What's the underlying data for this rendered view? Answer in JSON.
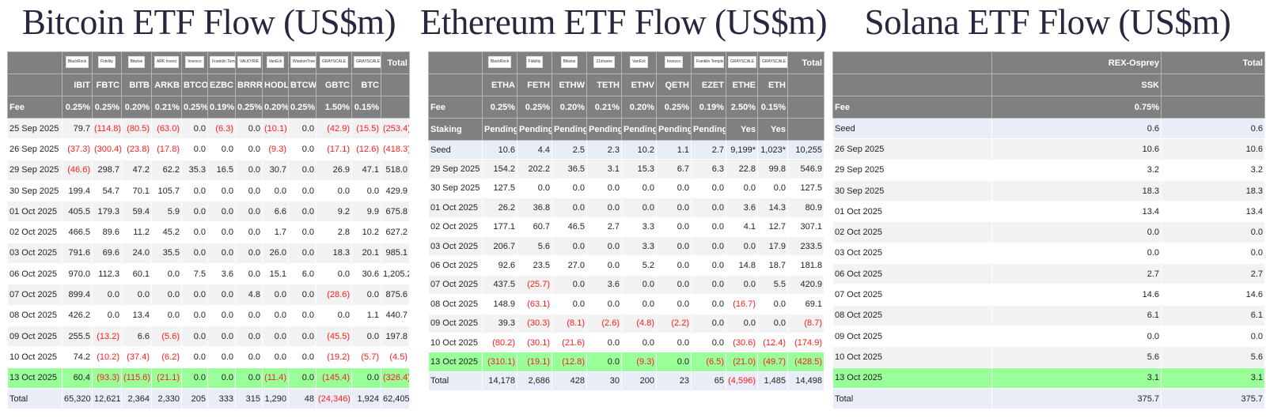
{
  "panels": [
    {
      "id": "btc",
      "title": "Bitcoin ETF Flow (US$m)",
      "widths": [
        69,
        38,
        37,
        38,
        38,
        33,
        35,
        34,
        33,
        35,
        45,
        37,
        36
      ],
      "logos": [
        "BlackRock",
        "Fidelity",
        "Bitwise",
        "ARK Invest",
        "Invesco",
        "Franklin Templeton",
        "VALKYRIE",
        "VanEck",
        "WisdomTree",
        "GRAYSCALE",
        "GRAYSCALE"
      ],
      "total_label": "Total",
      "tickers": [
        "IBIT",
        "FBTC",
        "BITB",
        "ARKB",
        "BTCO",
        "EZBC",
        "BRRR",
        "HODL",
        "BTCW",
        "GBTC",
        "BTC"
      ],
      "fee_label": "Fee",
      "fees": [
        "0.25%",
        "0.25%",
        "0.20%",
        "0.21%",
        "0.25%",
        "0.19%",
        "0.25%",
        "0.20%",
        "0.25%",
        "1.50%",
        "0.15%"
      ],
      "rows": [
        [
          "25 Sep 2025",
          "79.7",
          "(114.8)",
          "(80.5)",
          "(63.0)",
          "0.0",
          "(6.3)",
          "0.0",
          "(10.1)",
          "0.0",
          "(42.9)",
          "(15.5)",
          "(253.4)"
        ],
        [
          "26 Sep 2025",
          "(37.3)",
          "(300.4)",
          "(23.8)",
          "(17.8)",
          "0.0",
          "0.0",
          "0.0",
          "(9.3)",
          "0.0",
          "(17.1)",
          "(12.6)",
          "(418.3)"
        ],
        [
          "29 Sep 2025",
          "(46.6)",
          "298.7",
          "47.2",
          "62.2",
          "35.3",
          "16.5",
          "0.0",
          "30.7",
          "0.0",
          "26.9",
          "47.1",
          "518.0"
        ],
        [
          "30 Sep 2025",
          "199.4",
          "54.7",
          "70.1",
          "105.7",
          "0.0",
          "0.0",
          "0.0",
          "0.0",
          "0.0",
          "0.0",
          "0.0",
          "429.9"
        ],
        [
          "01 Oct 2025",
          "405.5",
          "179.3",
          "59.4",
          "5.9",
          "0.0",
          "0.0",
          "0.0",
          "6.6",
          "0.0",
          "9.2",
          "9.9",
          "675.8"
        ],
        [
          "02 Oct 2025",
          "466.5",
          "89.6",
          "11.2",
          "45.2",
          "0.0",
          "0.0",
          "0.0",
          "1.7",
          "0.0",
          "2.8",
          "10.2",
          "627.2"
        ],
        [
          "03 Oct 2025",
          "791.6",
          "69.6",
          "24.0",
          "35.5",
          "0.0",
          "0.0",
          "0.0",
          "26.0",
          "0.0",
          "18.3",
          "20.1",
          "985.1"
        ],
        [
          "06 Oct 2025",
          "970.0",
          "112.3",
          "60.1",
          "0.0",
          "7.5",
          "3.6",
          "0.0",
          "15.1",
          "6.0",
          "0.0",
          "30.6",
          "1,205.2"
        ],
        [
          "07 Oct 2025",
          "899.4",
          "0.0",
          "0.0",
          "0.0",
          "0.0",
          "0.0",
          "4.8",
          "0.0",
          "0.0",
          "(28.6)",
          "0.0",
          "875.6"
        ],
        [
          "08 Oct 2025",
          "426.2",
          "0.0",
          "13.4",
          "0.0",
          "0.0",
          "0.0",
          "0.0",
          "0.0",
          "0.0",
          "0.0",
          "1.1",
          "440.7"
        ],
        [
          "09 Oct 2025",
          "255.5",
          "(13.2)",
          "6.6",
          "(5.6)",
          "0.0",
          "0.0",
          "0.0",
          "0.0",
          "0.0",
          "(45.5)",
          "0.0",
          "197.8"
        ],
        [
          "10 Oct 2025",
          "74.2",
          "(10.2)",
          "(37.4)",
          "(6.2)",
          "0.0",
          "0.0",
          "0.0",
          "0.0",
          "0.0",
          "(19.2)",
          "(5.7)",
          "(4.5)"
        ],
        [
          "13 Oct 2025",
          "60.4",
          "(93.3)",
          "(115.6)",
          "(21.1)",
          "0.0",
          "0.0",
          "0.0",
          "(11.4)",
          "0.0",
          "(145.4)",
          "0.0",
          "(326.4)"
        ],
        [
          "Total",
          "65,320",
          "12,621",
          "2,364",
          "2,330",
          "205",
          "333",
          "315",
          "1,290",
          "48",
          "(24,346)",
          "1,924",
          "62,405"
        ]
      ]
    },
    {
      "id": "eth",
      "title": "Ethereum ETF Flow (US$m)",
      "widths": [
        68,
        44,
        44,
        44,
        44,
        44,
        44,
        44,
        40,
        38,
        46
      ],
      "logos": [
        "BlackRock",
        "Fidelity",
        "Bitwise",
        "21shares",
        "VanEck",
        "Invesco",
        "Franklin Templeton",
        "GRAYSCALE",
        "GRAYSCALE"
      ],
      "total_label": "Total",
      "tickers": [
        "ETHA",
        "FETH",
        "ETHW",
        "TETH",
        "ETHV",
        "QETH",
        "EZET",
        "ETHE",
        "ETH"
      ],
      "fee_label": "Fee",
      "fees": [
        "0.25%",
        "0.25%",
        "0.20%",
        "0.21%",
        "0.20%",
        "0.25%",
        "0.19%",
        "2.50%",
        "0.15%"
      ],
      "staking_label": "Staking",
      "staking": [
        "Pending",
        "Pending",
        "Pending",
        "Pending",
        "Pending",
        "Pending",
        "Pending",
        "Yes",
        "Yes"
      ],
      "rows": [
        [
          "Seed",
          "10.6",
          "4.4",
          "2.5",
          "2.3",
          "10.2",
          "1.1",
          "2.7",
          "9,199*",
          "1,023*",
          "10,255"
        ],
        [
          "29 Sep 2025",
          "154.2",
          "202.2",
          "36.5",
          "3.1",
          "15.3",
          "6.7",
          "6.3",
          "22.8",
          "99.8",
          "546.9"
        ],
        [
          "30 Sep 2025",
          "127.5",
          "0.0",
          "0.0",
          "0.0",
          "0.0",
          "0.0",
          "0.0",
          "0.0",
          "0.0",
          "127.5"
        ],
        [
          "01 Oct 2025",
          "26.2",
          "36.8",
          "0.0",
          "0.0",
          "0.0",
          "0.0",
          "0.0",
          "3.6",
          "14.3",
          "80.9"
        ],
        [
          "02 Oct 2025",
          "177.1",
          "60.7",
          "46.5",
          "2.7",
          "3.3",
          "0.0",
          "0.0",
          "4.1",
          "12.7",
          "307.1"
        ],
        [
          "03 Oct 2025",
          "206.7",
          "5.6",
          "0.0",
          "0.0",
          "3.3",
          "0.0",
          "0.0",
          "0.0",
          "17.9",
          "233.5"
        ],
        [
          "06 Oct 2025",
          "92.6",
          "23.5",
          "27.0",
          "0.0",
          "5.2",
          "0.0",
          "0.0",
          "14.8",
          "18.7",
          "181.8"
        ],
        [
          "07 Oct 2025",
          "437.5",
          "(25.7)",
          "0.0",
          "3.6",
          "0.0",
          "0.0",
          "0.0",
          "0.0",
          "5.5",
          "420.9"
        ],
        [
          "08 Oct 2025",
          "148.9",
          "(63.1)",
          "0.0",
          "0.0",
          "0.0",
          "0.0",
          "0.0",
          "(16.7)",
          "0.0",
          "69.1"
        ],
        [
          "09 Oct 2025",
          "39.3",
          "(30.3)",
          "(8.1)",
          "(2.6)",
          "(4.8)",
          "(2.2)",
          "0.0",
          "0.0",
          "0.0",
          "(8.7)"
        ],
        [
          "10 Oct 2025",
          "(80.2)",
          "(30.1)",
          "(21.6)",
          "0.0",
          "0.0",
          "0.0",
          "0.0",
          "(30.6)",
          "(12.4)",
          "(174.9)"
        ],
        [
          "13 Oct 2025",
          "(310.1)",
          "(19.1)",
          "(12.8)",
          "0.0",
          "(9.3)",
          "0.0",
          "(6.5)",
          "(21.0)",
          "(49.7)",
          "(428.5)"
        ],
        [
          "Total",
          "14,178",
          "2,686",
          "428",
          "30",
          "200",
          "23",
          "65",
          "(4,596)",
          "1,485",
          "14,498"
        ]
      ]
    },
    {
      "id": "sol",
      "title": "Solana ETF Flow (US$m)",
      "widths": [
        201,
        214,
        131
      ],
      "issuers": [
        "REX-Osprey"
      ],
      "total_label": "Total",
      "tickers": [
        "SSK"
      ],
      "fee_label": "Fee",
      "fees": [
        "0.75%"
      ],
      "rows": [
        [
          "Seed",
          "0.6",
          "0.6"
        ],
        [
          "26 Sep 2025",
          "10.6",
          "10.6"
        ],
        [
          "29 Sep 2025",
          "3.2",
          "3.2"
        ],
        [
          "30 Sep 2025",
          "18.3",
          "18.3"
        ],
        [
          "01 Oct 2025",
          "13.4",
          "13.4"
        ],
        [
          "02 Oct 2025",
          "0.0",
          "0.0"
        ],
        [
          "03 Oct 2025",
          "0.0",
          "0.0"
        ],
        [
          "06 Oct 2025",
          "2.7",
          "2.7"
        ],
        [
          "07 Oct 2025",
          "14.6",
          "14.6"
        ],
        [
          "08 Oct 2025",
          "6.1",
          "6.1"
        ],
        [
          "09 Oct 2025",
          "0.0",
          "0.0"
        ],
        [
          "10 Oct 2025",
          "5.6",
          "5.6"
        ],
        [
          "13 Oct 2025",
          "3.1",
          "3.1"
        ],
        [
          "Total",
          "375.7",
          "375.7"
        ]
      ]
    }
  ],
  "colors": {
    "header_bg": "#808080",
    "negative": "#ff1a1a",
    "highlight_row": "#99ff99",
    "seed_total_row": "#e9edf7",
    "alt_row": "#f2f2f2"
  }
}
